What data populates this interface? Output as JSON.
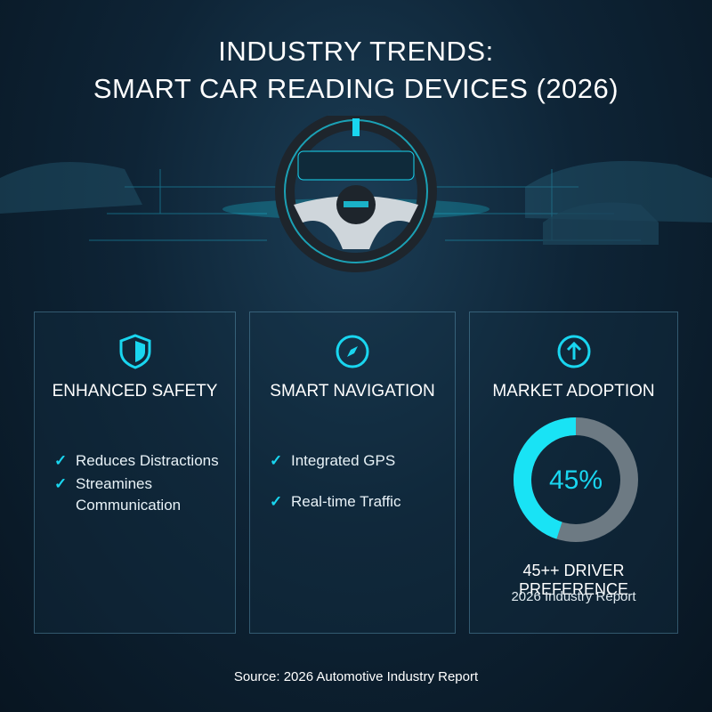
{
  "header": {
    "title_line1": "INDUSTRY TRENDS:",
    "title_line2": "SMART CAR READING DEVICES (2026)"
  },
  "cards": [
    {
      "title": "ENHANCED SAFETY",
      "items": [
        "Reduces Distractions",
        "Streamines Communication"
      ]
    },
    {
      "title": "SMART NAVIGATION",
      "items": [
        "Integrated GPS",
        "Real-time Traffic"
      ]
    },
    {
      "title": "MARKET ADOPTION",
      "donut": {
        "value": 45,
        "value_label": "45%"
      },
      "caption": "45++ DRIVER PREFERENCE",
      "subcaption": "2026 Industry Report"
    }
  ],
  "footer": {
    "source": "Source: 2026 Automotive Industry Report"
  }
}
